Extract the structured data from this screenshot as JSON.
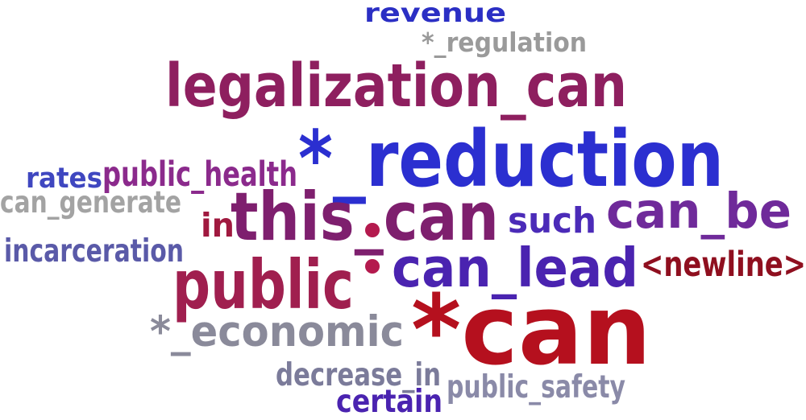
{
  "words": [
    {
      "key": "revenue",
      "text": "revenue",
      "color": "#2b2fc4",
      "weight": 3
    },
    {
      "key": "regulation",
      "text": "*_regulation",
      "color": "#9a9a9a",
      "weight": 2
    },
    {
      "key": "legalization_can",
      "text": "legalization_can",
      "color": "#8e1f5f",
      "weight": 6
    },
    {
      "key": "reduction",
      "text": "*_reduction",
      "color": "#2b2fd0",
      "weight": 9
    },
    {
      "key": "rates",
      "text": "rates",
      "color": "#3f47c0",
      "weight": 2
    },
    {
      "key": "public_health",
      "text": "public_health",
      "color": "#8b2a8c",
      "weight": 3
    },
    {
      "key": "can_generate",
      "text": "can_generate",
      "color": "#a3a3a3",
      "weight": 2
    },
    {
      "key": "in",
      "text": "in",
      "color": "#a0193f",
      "weight": 3
    },
    {
      "key": "this_can",
      "text": "this_can",
      "color": "#7e1f6e",
      "weight": 8
    },
    {
      "key": "such",
      "text": "such",
      "color": "#4b2bb8",
      "weight": 3
    },
    {
      "key": "can_be",
      "text": "can_be",
      "color": "#6f2a9a",
      "weight": 5
    },
    {
      "key": "incarceration",
      "text": "incarceration",
      "color": "#5a5aa8",
      "weight": 2
    },
    {
      "key": "public",
      "text": "public",
      "color": "#a01f4f",
      "weight": 8
    },
    {
      "key": "can_lead",
      "text": "can_lead",
      "color": "#4a23b0",
      "weight": 6
    },
    {
      "key": "newline",
      "text": "<newline>",
      "color": "#8f0f1f",
      "weight": 3
    },
    {
      "key": "economic",
      "text": "*_economic",
      "color": "#8a8a9a",
      "weight": 4
    },
    {
      "key": "can",
      "text": "*can",
      "color": "#b5101e",
      "weight": 10
    },
    {
      "key": "decrease_in",
      "text": "decrease_in",
      "color": "#7b7b9a",
      "weight": 2
    },
    {
      "key": "public_safety",
      "text": "public_safety",
      "color": "#8a8aa8",
      "weight": 2
    },
    {
      "key": "certain",
      "text": "certain",
      "color": "#4a23b0",
      "weight": 2
    }
  ],
  "dot_color": "#b41a4e"
}
